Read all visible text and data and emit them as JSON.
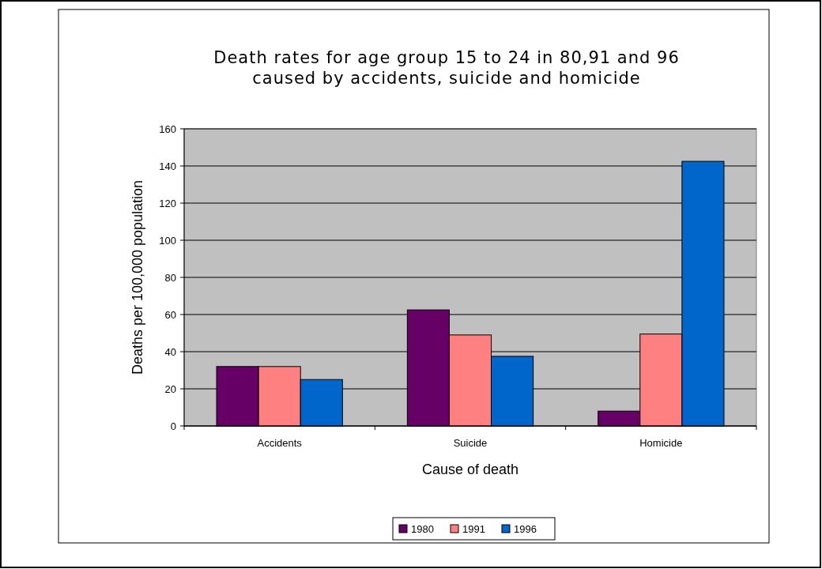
{
  "chart_data": {
    "type": "bar",
    "title": "Death rates for age group 15 to 24 in 80,91 and 96\ncaused by accidents, suicide and homicide",
    "xlabel": "Cause of death",
    "ylabel": "Deaths per 100,000 population",
    "categories": [
      "Accidents",
      "Suicide",
      "Homicide"
    ],
    "series": [
      {
        "name": "1980",
        "color": "#660066",
        "values": [
          32,
          62.5,
          8
        ]
      },
      {
        "name": "1991",
        "color": "#ff8080",
        "values": [
          32,
          49,
          49.5
        ]
      },
      {
        "name": "1996",
        "color": "#0066cc",
        "values": [
          25,
          37.5,
          142.5
        ]
      }
    ],
    "ylim": [
      0,
      160
    ],
    "yticks": [
      0,
      20,
      40,
      60,
      80,
      100,
      120,
      140,
      160
    ],
    "grid": "y",
    "legend": "bottom"
  }
}
